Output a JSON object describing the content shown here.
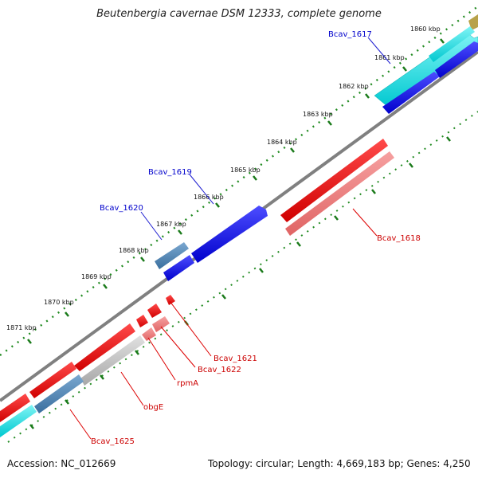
{
  "title": "Beutenbergia cavernae DSM 12333, complete genome",
  "footer": {
    "accession": "Accession: NC_012669",
    "summary": "Topology: circular; Length: 4,669,183 bp; Genes: 4,250"
  },
  "kbp_labels": [
    "1860 kbp",
    "1861 kbp",
    "1862 kbp",
    "1863 kbp",
    "1864 kbp",
    "1865 kbp",
    "1866 kbp",
    "1867 kbp",
    "1868 kbp",
    "1869 kbp",
    "1870 kbp",
    "1871 kbp"
  ],
  "gene_labels": [
    {
      "text": "Bcav_1617",
      "color": "#0000cc"
    },
    {
      "text": "Bcav_1619",
      "color": "#0000cc"
    },
    {
      "text": "Bcav_1620",
      "color": "#0000cc"
    },
    {
      "text": "Bcav_1618",
      "color": "#cc0000"
    },
    {
      "text": "Bcav_1621",
      "color": "#cc0000"
    },
    {
      "text": "Bcav_1622",
      "color": "#cc0000"
    },
    {
      "text": "rpmA",
      "color": "#cc0000"
    },
    {
      "text": "obgE",
      "color": "#cc0000"
    },
    {
      "text": "Bcav_1625",
      "color": "#cc0000"
    }
  ],
  "colors": {
    "backbone": "#808080",
    "forward_cds": "#0000ee",
    "forward_gene": "#00e5e5",
    "reverse_cds": "#ee0000",
    "reverse_gene": "#f08080",
    "pseudo": "#4682b4",
    "rna": "#c0c0c0",
    "tick": "#228b22"
  }
}
